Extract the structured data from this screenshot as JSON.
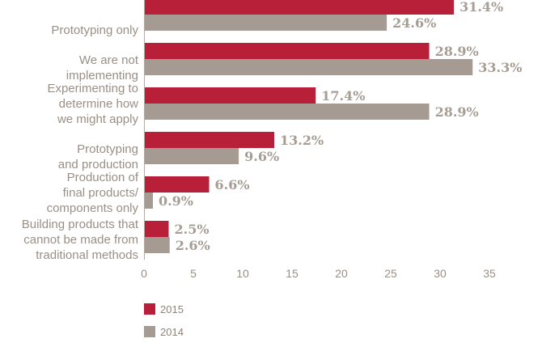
{
  "chart_data": {
    "type": "bar",
    "orientation": "horizontal",
    "categories": [
      [
        "Prototyping only"
      ],
      [
        "We are not",
        "implementing"
      ],
      [
        "Experimenting to",
        "determine how",
        "we might apply"
      ],
      [
        "Prototyping",
        "and production"
      ],
      [
        "Production of",
        "final products/",
        "components only"
      ],
      [
        "Building products that",
        "cannot be made from",
        "traditional methods"
      ]
    ],
    "series": [
      {
        "name": "2015",
        "color": "#b8203a",
        "values": [
          31.4,
          28.9,
          17.4,
          13.2,
          6.6,
          2.5
        ]
      },
      {
        "name": "2014",
        "color": "#a59b92",
        "values": [
          24.6,
          33.3,
          28.9,
          9.6,
          0.9,
          2.6
        ]
      }
    ],
    "value_labels": [
      [
        "31.4%",
        "28.9%",
        "17.4%",
        "13.2%",
        "6.6%",
        "2.5%"
      ],
      [
        "24.6%",
        "33.3%",
        "28.9%",
        "9.6%",
        "0.9%",
        "2.6%"
      ]
    ],
    "xlim": [
      0,
      35
    ],
    "xticks": [
      "0",
      "5",
      "10",
      "15",
      "20",
      "25",
      "30",
      "35"
    ],
    "grid": false,
    "legend_position": "bottom-left"
  }
}
